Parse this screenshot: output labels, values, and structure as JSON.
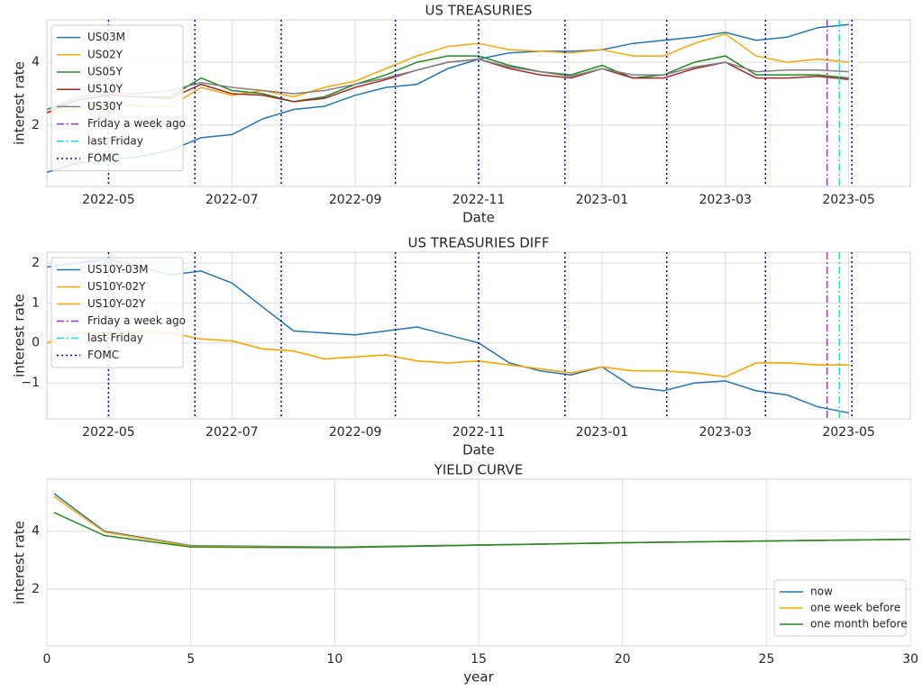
{
  "chart_data": [
    {
      "type": "line",
      "title": "US TREASURIES",
      "xlabel": "Date",
      "ylabel": "interest rate",
      "categories": [
        null,
        null,
        "2022-05",
        null,
        null,
        null,
        "2022-07",
        null,
        null,
        null,
        "2022-09",
        null,
        null,
        null,
        "2022-11",
        null,
        null,
        null,
        "2023-01",
        null,
        null,
        null,
        "2023-03",
        null,
        null,
        null,
        "2023-05"
      ],
      "series": [
        {
          "name": "US03M",
          "color": "#1f77b4",
          "values": [
            0.5,
            0.8,
            0.9,
            1.0,
            1.2,
            1.6,
            1.7,
            2.2,
            2.5,
            2.6,
            2.95,
            3.2,
            3.3,
            3.8,
            4.1,
            4.3,
            4.35,
            4.35,
            4.4,
            4.6,
            4.7,
            4.8,
            4.95,
            4.7,
            4.8,
            5.1,
            5.2
          ]
        },
        {
          "name": "US02Y",
          "color": "#ffa500",
          "values": [
            2.4,
            2.5,
            2.7,
            2.6,
            2.6,
            3.2,
            2.95,
            3.1,
            2.9,
            3.2,
            3.4,
            3.8,
            4.2,
            4.5,
            4.6,
            4.4,
            4.35,
            4.3,
            4.4,
            4.2,
            4.2,
            4.6,
            4.9,
            4.2,
            4.0,
            4.1,
            4.0
          ]
        },
        {
          "name": "US05Y",
          "color": "#228b22",
          "values": [
            2.5,
            2.8,
            2.95,
            2.9,
            2.9,
            3.5,
            3.1,
            3.0,
            2.75,
            2.9,
            3.3,
            3.6,
            4.0,
            4.2,
            4.2,
            3.9,
            3.7,
            3.6,
            3.9,
            3.5,
            3.6,
            4.0,
            4.2,
            3.6,
            3.6,
            3.6,
            3.5
          ]
        },
        {
          "name": "US10Y",
          "color": "#a52a2a",
          "values": [
            2.4,
            2.8,
            2.95,
            2.9,
            2.85,
            3.3,
            3.0,
            2.95,
            2.75,
            2.85,
            3.2,
            3.45,
            3.75,
            4.0,
            4.1,
            3.8,
            3.6,
            3.5,
            3.8,
            3.5,
            3.5,
            3.8,
            4.0,
            3.5,
            3.5,
            3.55,
            3.45
          ]
        },
        {
          "name": "US30Y",
          "color": "#808080",
          "values": [
            2.5,
            2.9,
            3.0,
            3.0,
            3.1,
            3.35,
            3.2,
            3.1,
            3.0,
            3.1,
            3.3,
            3.5,
            3.75,
            4.0,
            4.1,
            3.85,
            3.7,
            3.55,
            3.8,
            3.6,
            3.6,
            3.85,
            4.0,
            3.7,
            3.75,
            3.75,
            3.7
          ]
        }
      ],
      "vlines": [
        {
          "name": "Friday a week ago",
          "color": "#9932cc",
          "style": "dashdot",
          "at": [
            25.3
          ]
        },
        {
          "name": "last Friday",
          "color": "#00e5ee",
          "style": "dashdot",
          "at": [
            25.7
          ]
        },
        {
          "name": "FOMC",
          "color": "#0000cd",
          "style": "dotted",
          "at": [
            2.0,
            4.8,
            7.6,
            11.3,
            14.0,
            16.8,
            20.1,
            23.3,
            26.1
          ]
        }
      ],
      "ylim": [
        0.05,
        5.35
      ],
      "yticks": [
        2,
        4
      ],
      "grid": true,
      "legend": "upper left"
    },
    {
      "type": "line",
      "title": "US TREASURIES DIFF",
      "xlabel": "Date",
      "ylabel": "interest rate",
      "categories": [
        null,
        null,
        "2022-05",
        null,
        null,
        null,
        "2022-07",
        null,
        null,
        null,
        "2022-09",
        null,
        null,
        null,
        "2022-11",
        null,
        null,
        null,
        "2023-01",
        null,
        null,
        null,
        "2023-03",
        null,
        null,
        null,
        "2023-05"
      ],
      "series": [
        {
          "name": "US10Y-03M",
          "color": "#1f77b4",
          "values": [
            1.9,
            2.0,
            2.1,
            1.9,
            1.7,
            1.8,
            1.5,
            0.9,
            0.3,
            0.25,
            0.2,
            0.3,
            0.4,
            0.2,
            0.0,
            -0.5,
            -0.7,
            -0.8,
            -0.6,
            -1.1,
            -1.2,
            -1.0,
            -0.95,
            -1.2,
            -1.3,
            -1.6,
            -1.75
          ]
        },
        {
          "name": "US10Y-02Y",
          "color": "#ffa500",
          "values": [
            0.0,
            0.25,
            0.25,
            0.3,
            0.25,
            0.1,
            0.05,
            -0.15,
            -0.2,
            -0.4,
            -0.35,
            -0.3,
            -0.45,
            -0.5,
            -0.45,
            -0.55,
            -0.65,
            -0.75,
            -0.6,
            -0.7,
            -0.7,
            -0.75,
            -0.85,
            -0.5,
            -0.5,
            -0.55,
            -0.55
          ]
        },
        {
          "name": "US10Y-02Y",
          "color": "#ffa500",
          "values": [
            0.0,
            0.25,
            0.25,
            0.3,
            0.25,
            0.1,
            0.05,
            -0.15,
            -0.2,
            -0.4,
            -0.35,
            -0.3,
            -0.45,
            -0.5,
            -0.45,
            -0.55,
            -0.65,
            -0.75,
            -0.6,
            -0.7,
            -0.7,
            -0.75,
            -0.85,
            -0.5,
            -0.5,
            -0.55,
            -0.55
          ]
        }
      ],
      "vlines": [
        {
          "name": "Friday a week ago",
          "color": "#9932cc",
          "style": "dashdot",
          "at": [
            25.3
          ]
        },
        {
          "name": "last Friday",
          "color": "#00e5ee",
          "style": "dashdot",
          "at": [
            25.7
          ]
        },
        {
          "name": "FOMC",
          "color": "#0000cd",
          "style": "dotted",
          "at": [
            2.0,
            4.8,
            7.6,
            11.3,
            14.0,
            16.8,
            20.1,
            23.3,
            26.1
          ]
        }
      ],
      "ylim": [
        -1.9,
        2.27
      ],
      "yticks": [
        {
          "value": -1,
          "label": "−1"
        },
        0,
        1,
        2
      ],
      "grid": true,
      "legend": "upper left"
    },
    {
      "type": "line",
      "title": "YIELD CURVE",
      "xlabel": "year",
      "ylabel": "interest rate",
      "x": [
        0.25,
        2,
        5,
        10,
        20,
        30
      ],
      "series": [
        {
          "name": "now",
          "color": "#1f77b4",
          "values": [
            5.3,
            4.0,
            3.5,
            3.45,
            3.6,
            3.72
          ]
        },
        {
          "name": "one week before",
          "color": "#ffa500",
          "values": [
            5.2,
            3.97,
            3.48,
            3.44,
            3.6,
            3.72
          ]
        },
        {
          "name": "one month before",
          "color": "#228b22",
          "values": [
            4.65,
            3.85,
            3.45,
            3.43,
            3.6,
            3.72
          ]
        }
      ],
      "xlim": [
        0,
        30
      ],
      "xticks": [
        0,
        5,
        10,
        15,
        20,
        25,
        30
      ],
      "ylim": [
        0.03,
        5.8
      ],
      "yticks": [
        2,
        4
      ],
      "grid": true,
      "legend": "lower right"
    }
  ]
}
